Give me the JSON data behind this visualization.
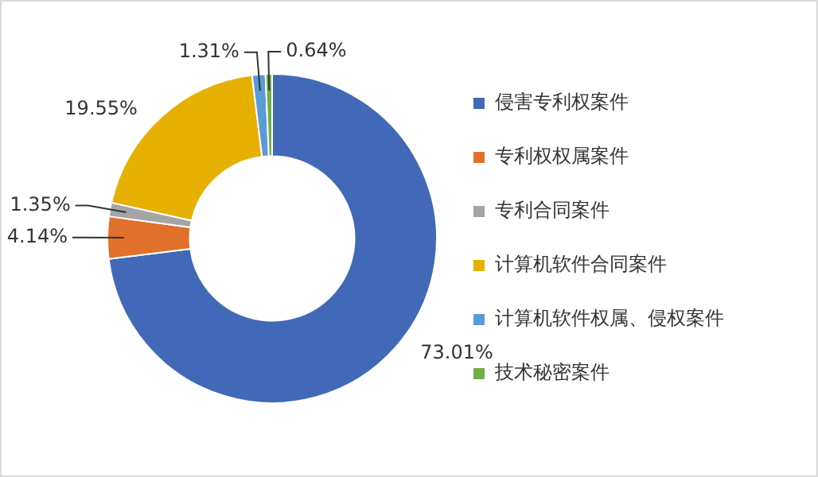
{
  "chart_data": {
    "type": "donut",
    "categories": [
      "侵害专利权案件",
      "专利权权属案件",
      "专利合同案件",
      "计算机软件合同案件",
      "计算机软件权属、侵权案件",
      "技术秘密案件"
    ],
    "values": [
      73.01,
      4.14,
      1.35,
      19.55,
      1.31,
      0.64
    ],
    "colors": [
      "#4169b8",
      "#e0702a",
      "#a5a5a5",
      "#e6b000",
      "#5b9bd5",
      "#70ad47"
    ],
    "value_labels": [
      "73.01%",
      "4.14%",
      "1.35%",
      "19.55%",
      "1.31%",
      "0.64%"
    ],
    "legend": "right"
  }
}
